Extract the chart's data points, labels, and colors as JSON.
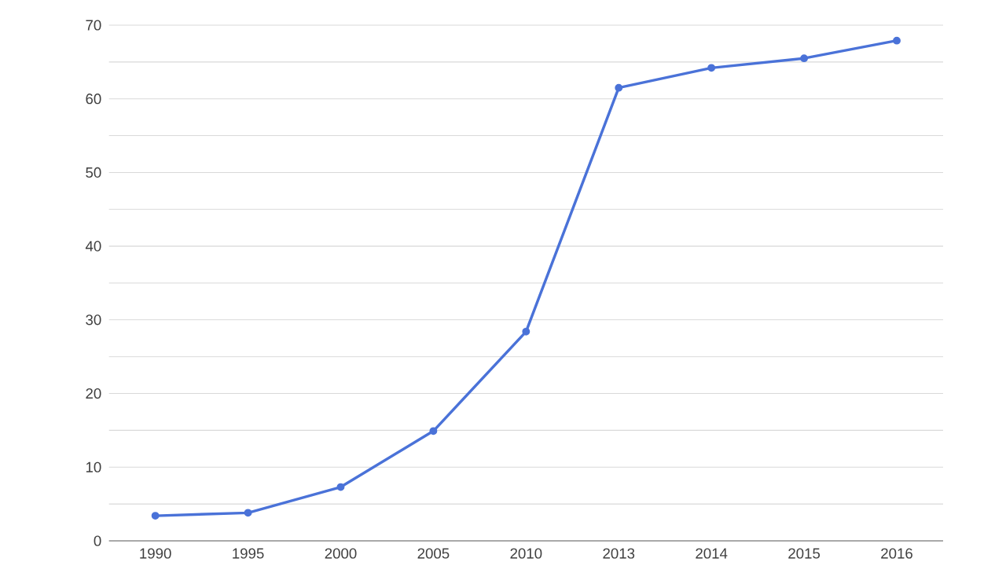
{
  "chart_data": {
    "type": "line",
    "categories": [
      "1990",
      "1995",
      "2000",
      "2005",
      "2010",
      "2013",
      "2014",
      "2015",
      "2016"
    ],
    "series": [
      {
        "color": "#4a72d8",
        "values": [
          3.4,
          3.8,
          7.3,
          14.9,
          28.4,
          61.5,
          64.2,
          65.5,
          67.9
        ]
      }
    ],
    "ylim": [
      0,
      70
    ],
    "yticks": [
      0,
      {
        "value": 5,
        "label": null
      },
      10,
      {
        "value": 15,
        "label": null
      },
      20,
      {
        "value": 25,
        "label": null
      },
      30,
      {
        "value": 35,
        "label": null
      },
      40,
      {
        "value": 45,
        "label": null
      },
      50,
      {
        "value": 55,
        "label": null
      },
      60,
      {
        "value": 65,
        "label": null
      },
      70
    ],
    "grid": "y",
    "marker": "circle",
    "line_style": "solid"
  }
}
